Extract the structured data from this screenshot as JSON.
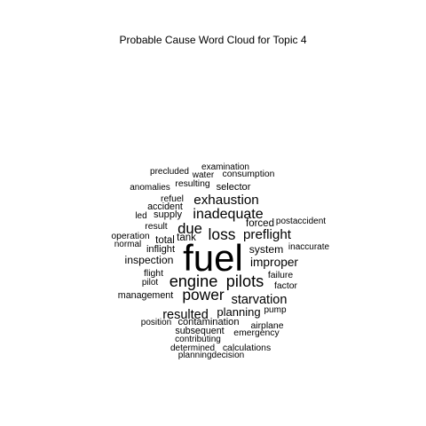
{
  "chart_data": {
    "type": "wordcloud",
    "title": "Probable Cause Word Cloud for Topic 4",
    "words": [
      {
        "text": "fuel",
        "weight": 100
      },
      {
        "text": "power",
        "weight": 34
      },
      {
        "text": "engine",
        "weight": 36
      },
      {
        "text": "pilots",
        "weight": 36
      },
      {
        "text": "loss",
        "weight": 34
      },
      {
        "text": "due",
        "weight": 32
      },
      {
        "text": "inadequate",
        "weight": 30
      },
      {
        "text": "exhaustion",
        "weight": 28
      },
      {
        "text": "preflight",
        "weight": 28
      },
      {
        "text": "starvation",
        "weight": 26
      },
      {
        "text": "resulted",
        "weight": 26
      },
      {
        "text": "improper",
        "weight": 24
      },
      {
        "text": "planning",
        "weight": 22
      },
      {
        "text": "system",
        "weight": 20
      },
      {
        "text": "inspection",
        "weight": 20
      },
      {
        "text": "forced",
        "weight": 18
      },
      {
        "text": "total",
        "weight": 18
      },
      {
        "text": "tank",
        "weight": 18
      },
      {
        "text": "selector",
        "weight": 17
      },
      {
        "text": "contamination",
        "weight": 17
      },
      {
        "text": "supply",
        "weight": 17
      },
      {
        "text": "inflight",
        "weight": 17
      },
      {
        "text": "management",
        "weight": 16
      },
      {
        "text": "accident",
        "weight": 16
      },
      {
        "text": "subsequent",
        "weight": 16
      },
      {
        "text": "factor",
        "weight": 15
      },
      {
        "text": "result",
        "weight": 15
      },
      {
        "text": "refuel",
        "weight": 15
      },
      {
        "text": "consumption",
        "weight": 15
      },
      {
        "text": "failure",
        "weight": 15
      },
      {
        "text": "flight",
        "weight": 15
      },
      {
        "text": "operation",
        "weight": 15
      },
      {
        "text": "emergency",
        "weight": 15
      },
      {
        "text": "resulting",
        "weight": 15
      },
      {
        "text": "airplane",
        "weight": 15
      },
      {
        "text": "calculations",
        "weight": 15
      },
      {
        "text": "examination",
        "weight": 14
      },
      {
        "text": "precluded",
        "weight": 14
      },
      {
        "text": "water",
        "weight": 14
      },
      {
        "text": "anomalies",
        "weight": 14
      },
      {
        "text": "led",
        "weight": 14
      },
      {
        "text": "postaccident",
        "weight": 14
      },
      {
        "text": "normal",
        "weight": 14
      },
      {
        "text": "inaccurate",
        "weight": 14
      },
      {
        "text": "pilot",
        "weight": 14
      },
      {
        "text": "pump",
        "weight": 14
      },
      {
        "text": "position",
        "weight": 14
      },
      {
        "text": "contributing",
        "weight": 14
      },
      {
        "text": "determined",
        "weight": 14
      },
      {
        "text": "planningdecision",
        "weight": 14
      }
    ]
  }
}
